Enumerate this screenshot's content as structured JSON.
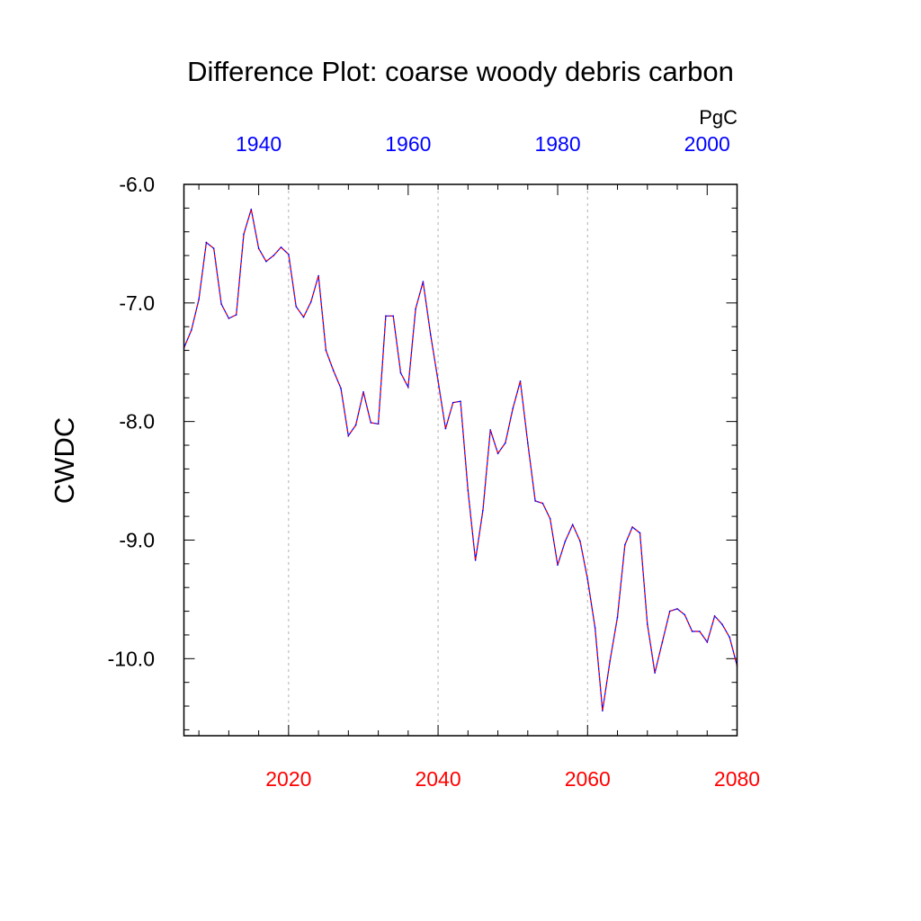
{
  "chart_data": {
    "type": "line",
    "title": "Difference Plot: coarse woody debris carbon",
    "ylabel": "CWDC",
    "units": "PgC",
    "bottom_axis": {
      "label_color": "#ff0000",
      "ticks": [
        "2020",
        "2040",
        "2060",
        "2080"
      ],
      "range": [
        2006,
        2080
      ]
    },
    "top_axis": {
      "label_color": "#0000ff",
      "ticks": [
        "1940",
        "1960",
        "1980",
        "2000"
      ],
      "range": [
        1930,
        2004
      ]
    },
    "y_ticks": [
      "-6.0",
      "-7.0",
      "-8.0",
      "-9.0",
      "-10.0"
    ],
    "ylim": [
      -10.65,
      -6.0
    ],
    "grid": "dashed vertical lines at major bottom-axis ticks",
    "series": [
      {
        "color": "#0000ff",
        "dash_color": "#ff0000",
        "x": [
          2006,
          2007,
          2008,
          2009,
          2010,
          2011,
          2012,
          2013,
          2014,
          2015,
          2016,
          2017,
          2018,
          2019,
          2020,
          2021,
          2022,
          2023,
          2024,
          2025,
          2026,
          2027,
          2028,
          2029,
          2030,
          2031,
          2032,
          2033,
          2034,
          2035,
          2036,
          2037,
          2038,
          2039,
          2040,
          2041,
          2042,
          2043,
          2044,
          2045,
          2046,
          2047,
          2048,
          2049,
          2050,
          2051,
          2052,
          2053,
          2054,
          2055,
          2056,
          2057,
          2058,
          2059,
          2060,
          2061,
          2062,
          2063,
          2064,
          2065,
          2066,
          2067,
          2068,
          2069,
          2070,
          2071,
          2072,
          2073,
          2074,
          2075,
          2076,
          2077,
          2078,
          2079,
          2080
        ],
        "values": [
          -7.38,
          -7.23,
          -6.97,
          -6.49,
          -6.54,
          -7.01,
          -7.13,
          -7.1,
          -6.42,
          -6.21,
          -6.54,
          -6.65,
          -6.6,
          -6.53,
          -6.59,
          -7.03,
          -7.12,
          -6.99,
          -6.77,
          -7.4,
          -7.57,
          -7.72,
          -8.12,
          -8.03,
          -7.75,
          -8.01,
          -8.02,
          -7.11,
          -7.11,
          -7.59,
          -7.71,
          -7.05,
          -6.82,
          -7.27,
          -7.66,
          -8.06,
          -7.84,
          -7.83,
          -8.58,
          -9.17,
          -8.75,
          -8.07,
          -8.27,
          -8.18,
          -7.89,
          -7.66,
          -8.18,
          -8.67,
          -8.69,
          -8.82,
          -9.21,
          -9.01,
          -8.87,
          -9.01,
          -9.33,
          -9.74,
          -10.44,
          -10.02,
          -9.65,
          -9.04,
          -8.89,
          -8.94,
          -9.71,
          -10.12,
          -9.86,
          -9.6,
          -9.58,
          -9.63,
          -9.77,
          -9.77,
          -9.86,
          -9.64,
          -9.71,
          -9.82,
          -10.06
        ]
      }
    ]
  }
}
